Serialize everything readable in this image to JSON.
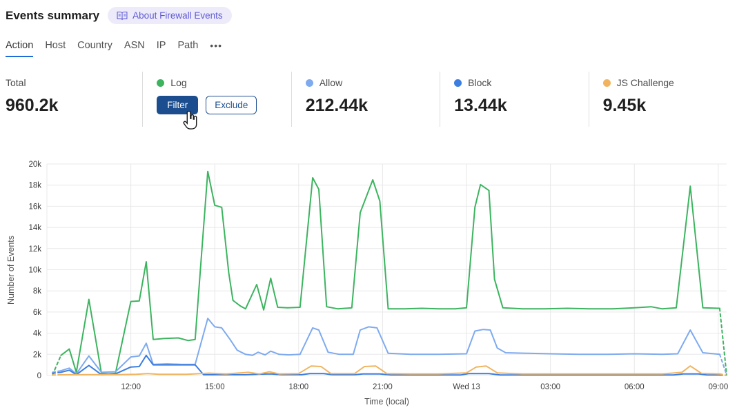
{
  "header": {
    "title": "Events summary",
    "about_badge": "About Firewall Events",
    "badge_color": "#5e5ad6"
  },
  "tabs": {
    "items": [
      {
        "label": "Action",
        "active": true
      },
      {
        "label": "Host",
        "active": false
      },
      {
        "label": "Country",
        "active": false
      },
      {
        "label": "ASN",
        "active": false
      },
      {
        "label": "IP",
        "active": false
      },
      {
        "label": "Path",
        "active": false
      }
    ],
    "more": "•••"
  },
  "stats": {
    "total": {
      "label": "Total",
      "value": "960.2k"
    },
    "cards": [
      {
        "label": "Log",
        "dot_color": "#3cb45f",
        "buttons": {
          "filter": "Filter",
          "exclude": "Exclude"
        }
      },
      {
        "label": "Allow",
        "dot_color": "#7eaaef",
        "value": "212.44k"
      },
      {
        "label": "Block",
        "dot_color": "#3b7de0",
        "value": "13.44k"
      },
      {
        "label": "JS Challenge",
        "dot_color": "#f0b45f",
        "value": "9.45k"
      }
    ]
  },
  "chart_data": {
    "type": "line",
    "title": "",
    "xlabel": "Time (local)",
    "ylabel": "Number of Events",
    "grid": true,
    "legend_position": "stat-cards-above",
    "x_unit": "hours from left edge of range (range spans ~09:10 to 09:00 next day)",
    "value_unit": "thousands of events (k)",
    "xlim": [
      0,
      24.3
    ],
    "ylim": [
      0,
      20
    ],
    "y_ticks": [
      {
        "v": 0,
        "label": "0"
      },
      {
        "v": 2,
        "label": "2k"
      },
      {
        "v": 4,
        "label": "4k"
      },
      {
        "v": 6,
        "label": "6k"
      },
      {
        "v": 8,
        "label": "8k"
      },
      {
        "v": 10,
        "label": "10k"
      },
      {
        "v": 12,
        "label": "12k"
      },
      {
        "v": 14,
        "label": "14k"
      },
      {
        "v": 16,
        "label": "16k"
      },
      {
        "v": 18,
        "label": "18k"
      },
      {
        "v": 20,
        "label": "20k"
      }
    ],
    "x_ticks": [
      {
        "t": 3,
        "label": "12:00"
      },
      {
        "t": 6,
        "label": "15:00"
      },
      {
        "t": 9,
        "label": "18:00"
      },
      {
        "t": 12,
        "label": "21:00"
      },
      {
        "t": 15,
        "label": "Wed 13"
      },
      {
        "t": 18,
        "label": "03:00"
      },
      {
        "t": 21,
        "label": "06:00"
      },
      {
        "t": 24,
        "label": "09:00"
      }
    ],
    "series": [
      {
        "name": "Log",
        "color": "#3cb45f",
        "dash_lead": [
          [
            0.2,
            0.05
          ],
          [
            0.5,
            1.9
          ]
        ],
        "points": [
          [
            0.5,
            1.9
          ],
          [
            0.8,
            2.5
          ],
          [
            1.05,
            0.3
          ],
          [
            1.5,
            7.2
          ],
          [
            1.95,
            0.2
          ],
          [
            2.2,
            0.15
          ],
          [
            2.45,
            0.2
          ],
          [
            3.0,
            7.0
          ],
          [
            3.3,
            7.05
          ],
          [
            3.55,
            10.75
          ],
          [
            3.8,
            3.4
          ],
          [
            4.2,
            3.5
          ],
          [
            4.7,
            3.55
          ],
          [
            5.05,
            3.3
          ],
          [
            5.3,
            3.4
          ],
          [
            5.75,
            19.3
          ],
          [
            6.0,
            16.1
          ],
          [
            6.25,
            15.9
          ],
          [
            6.5,
            9.7
          ],
          [
            6.65,
            7.1
          ],
          [
            6.9,
            6.6
          ],
          [
            7.1,
            6.3
          ],
          [
            7.5,
            8.6
          ],
          [
            7.75,
            6.2
          ],
          [
            8.0,
            9.2
          ],
          [
            8.25,
            6.45
          ],
          [
            8.6,
            6.4
          ],
          [
            9.05,
            6.45
          ],
          [
            9.5,
            18.7
          ],
          [
            9.72,
            17.6
          ],
          [
            10.0,
            6.5
          ],
          [
            10.4,
            6.3
          ],
          [
            10.9,
            6.4
          ],
          [
            11.2,
            15.4
          ],
          [
            11.65,
            18.5
          ],
          [
            11.9,
            16.5
          ],
          [
            12.2,
            6.3
          ],
          [
            12.8,
            6.3
          ],
          [
            13.4,
            6.35
          ],
          [
            14.0,
            6.3
          ],
          [
            14.6,
            6.3
          ],
          [
            15.0,
            6.4
          ],
          [
            15.3,
            15.9
          ],
          [
            15.5,
            18.05
          ],
          [
            15.8,
            17.5
          ],
          [
            16.0,
            9.1
          ],
          [
            16.3,
            6.4
          ],
          [
            17.0,
            6.3
          ],
          [
            17.8,
            6.3
          ],
          [
            18.6,
            6.35
          ],
          [
            19.4,
            6.3
          ],
          [
            20.2,
            6.3
          ],
          [
            21.0,
            6.4
          ],
          [
            21.6,
            6.5
          ],
          [
            22.0,
            6.3
          ],
          [
            22.5,
            6.4
          ],
          [
            23.0,
            17.9
          ],
          [
            23.45,
            6.4
          ],
          [
            24.05,
            6.35
          ]
        ],
        "dash_tail": [
          [
            24.05,
            6.35
          ],
          [
            24.3,
            0.05
          ]
        ]
      },
      {
        "name": "Allow",
        "color": "#7eaaef",
        "dash_lead": [
          [
            0.2,
            0.3
          ],
          [
            0.5,
            0.45
          ]
        ],
        "points": [
          [
            0.5,
            0.45
          ],
          [
            0.8,
            0.7
          ],
          [
            1.05,
            0.15
          ],
          [
            1.5,
            1.85
          ],
          [
            1.95,
            0.3
          ],
          [
            2.45,
            0.35
          ],
          [
            3.0,
            1.75
          ],
          [
            3.3,
            1.85
          ],
          [
            3.55,
            3.05
          ],
          [
            3.8,
            1.05
          ],
          [
            4.3,
            1.1
          ],
          [
            4.8,
            1.05
          ],
          [
            5.3,
            1.05
          ],
          [
            5.75,
            5.4
          ],
          [
            6.0,
            4.6
          ],
          [
            6.25,
            4.5
          ],
          [
            6.55,
            3.4
          ],
          [
            6.8,
            2.4
          ],
          [
            7.1,
            2.0
          ],
          [
            7.35,
            1.9
          ],
          [
            7.55,
            2.2
          ],
          [
            7.8,
            1.95
          ],
          [
            8.0,
            2.3
          ],
          [
            8.3,
            2.0
          ],
          [
            8.65,
            1.95
          ],
          [
            9.05,
            2.0
          ],
          [
            9.5,
            4.5
          ],
          [
            9.72,
            4.3
          ],
          [
            10.05,
            2.2
          ],
          [
            10.45,
            2.0
          ],
          [
            10.95,
            2.0
          ],
          [
            11.2,
            4.3
          ],
          [
            11.5,
            4.6
          ],
          [
            11.8,
            4.5
          ],
          [
            12.2,
            2.1
          ],
          [
            13.0,
            2.0
          ],
          [
            14.0,
            2.0
          ],
          [
            15.0,
            2.05
          ],
          [
            15.3,
            4.2
          ],
          [
            15.6,
            4.35
          ],
          [
            15.85,
            4.3
          ],
          [
            16.1,
            2.6
          ],
          [
            16.4,
            2.15
          ],
          [
            17.2,
            2.1
          ],
          [
            18.0,
            2.05
          ],
          [
            19.0,
            2.0
          ],
          [
            20.0,
            2.0
          ],
          [
            21.0,
            2.05
          ],
          [
            22.0,
            2.0
          ],
          [
            22.55,
            2.05
          ],
          [
            23.0,
            4.3
          ],
          [
            23.45,
            2.15
          ],
          [
            24.05,
            2.0
          ]
        ],
        "dash_tail": [
          [
            24.05,
            2.0
          ],
          [
            24.3,
            0.05
          ]
        ]
      },
      {
        "name": "Block",
        "color": "#3b7de0",
        "dash_lead": [
          [
            0.2,
            0.2
          ],
          [
            0.5,
            0.3
          ]
        ],
        "points": [
          [
            0.5,
            0.3
          ],
          [
            0.8,
            0.5
          ],
          [
            1.05,
            0.08
          ],
          [
            1.5,
            0.95
          ],
          [
            1.95,
            0.08
          ],
          [
            2.45,
            0.15
          ],
          [
            3.0,
            0.8
          ],
          [
            3.3,
            0.85
          ],
          [
            3.55,
            1.9
          ],
          [
            3.8,
            1.0
          ],
          [
            4.5,
            1.0
          ],
          [
            5.3,
            1.0
          ],
          [
            5.6,
            0.07
          ],
          [
            6.3,
            0.07
          ],
          [
            7.1,
            0.07
          ],
          [
            7.5,
            0.12
          ],
          [
            8.0,
            0.15
          ],
          [
            8.4,
            0.07
          ],
          [
            9.1,
            0.07
          ],
          [
            9.4,
            0.18
          ],
          [
            9.9,
            0.18
          ],
          [
            10.2,
            0.07
          ],
          [
            11.0,
            0.07
          ],
          [
            11.3,
            0.15
          ],
          [
            11.9,
            0.15
          ],
          [
            12.3,
            0.05
          ],
          [
            13.5,
            0.05
          ],
          [
            14.8,
            0.05
          ],
          [
            15.1,
            0.18
          ],
          [
            15.8,
            0.18
          ],
          [
            16.2,
            0.05
          ],
          [
            17.5,
            0.05
          ],
          [
            19.0,
            0.05
          ],
          [
            20.5,
            0.05
          ],
          [
            22.4,
            0.05
          ],
          [
            22.75,
            0.15
          ],
          [
            23.3,
            0.15
          ],
          [
            23.6,
            0.05
          ],
          [
            24.05,
            0.05
          ]
        ],
        "dash_tail": [
          [
            24.05,
            0.05
          ],
          [
            24.3,
            0.02
          ]
        ]
      },
      {
        "name": "JS Challenge",
        "color": "#f0b45f",
        "dash_lead": [
          [
            0.2,
            0.05
          ],
          [
            0.5,
            0.07
          ]
        ],
        "points": [
          [
            0.5,
            0.07
          ],
          [
            1.5,
            0.08
          ],
          [
            2.5,
            0.08
          ],
          [
            3.2,
            0.12
          ],
          [
            3.6,
            0.18
          ],
          [
            4.0,
            0.12
          ],
          [
            5.0,
            0.12
          ],
          [
            5.8,
            0.22
          ],
          [
            6.4,
            0.15
          ],
          [
            7.2,
            0.3
          ],
          [
            7.6,
            0.15
          ],
          [
            7.95,
            0.35
          ],
          [
            8.3,
            0.15
          ],
          [
            9.0,
            0.18
          ],
          [
            9.45,
            0.9
          ],
          [
            9.8,
            0.85
          ],
          [
            10.15,
            0.18
          ],
          [
            11.0,
            0.18
          ],
          [
            11.35,
            0.85
          ],
          [
            11.75,
            0.9
          ],
          [
            12.15,
            0.18
          ],
          [
            13.0,
            0.15
          ],
          [
            14.0,
            0.15
          ],
          [
            15.0,
            0.25
          ],
          [
            15.35,
            0.8
          ],
          [
            15.7,
            0.9
          ],
          [
            16.1,
            0.25
          ],
          [
            17.0,
            0.15
          ],
          [
            18.0,
            0.15
          ],
          [
            19.0,
            0.15
          ],
          [
            20.0,
            0.15
          ],
          [
            21.0,
            0.15
          ],
          [
            22.0,
            0.15
          ],
          [
            22.7,
            0.3
          ],
          [
            23.0,
            0.9
          ],
          [
            23.4,
            0.2
          ],
          [
            24.05,
            0.15
          ]
        ],
        "dash_tail": [
          [
            24.05,
            0.15
          ],
          [
            24.3,
            0.02
          ]
        ]
      }
    ]
  }
}
